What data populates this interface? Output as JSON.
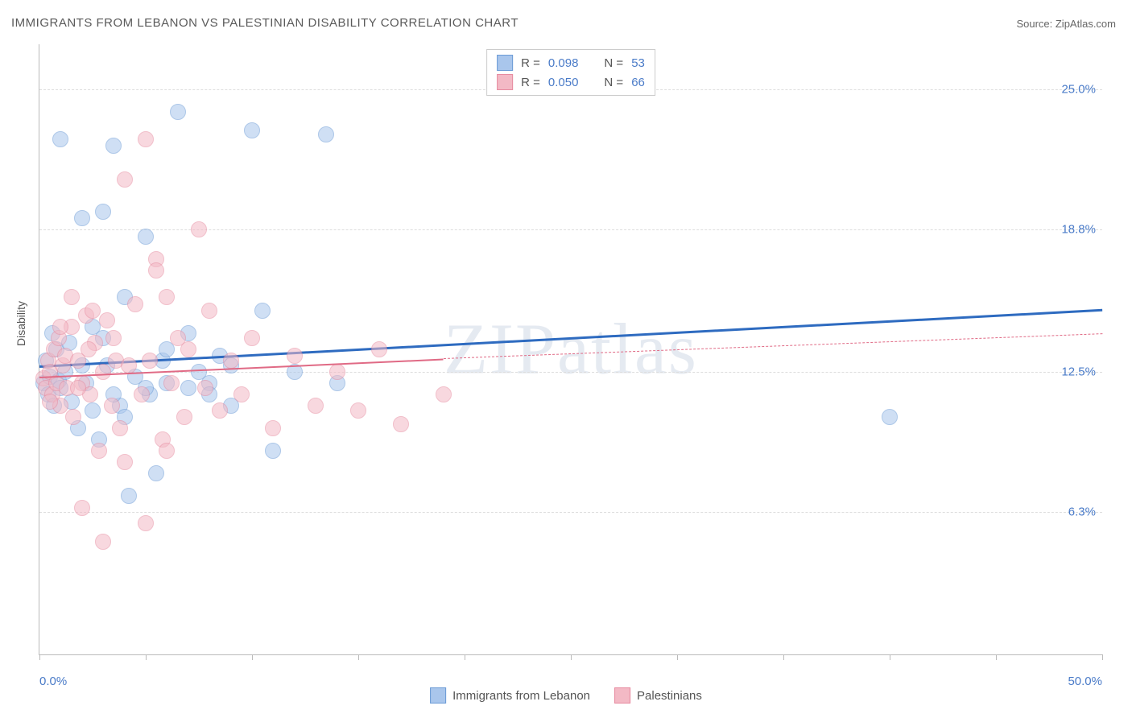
{
  "title": "IMMIGRANTS FROM LEBANON VS PALESTINIAN DISABILITY CORRELATION CHART",
  "source_label": "Source: ",
  "source_name": "ZipAtlas.com",
  "ylabel": "Disability",
  "watermark": "ZIPatlas",
  "chart": {
    "type": "scatter",
    "xlim": [
      0,
      50
    ],
    "ylim": [
      0,
      27
    ],
    "y_gridlines": [
      6.3,
      12.5,
      18.8,
      25.0
    ],
    "y_tick_labels": [
      "6.3%",
      "12.5%",
      "18.8%",
      "25.0%"
    ],
    "x_ticks": [
      0,
      5,
      10,
      15,
      20,
      25,
      30,
      35,
      40,
      45,
      50
    ],
    "x_tick_labels": {
      "start": "0.0%",
      "end": "50.0%"
    },
    "marker_radius": 9,
    "marker_opacity": 0.55,
    "background": "#ffffff",
    "grid_color": "#dddddd",
    "axis_color": "#bbbbbb"
  },
  "series": [
    {
      "name": "Immigrants from Lebanon",
      "fill": "#a9c6ec",
      "stroke": "#6b9bd6",
      "line_color": "#2e6bc0",
      "line_width": 3,
      "r_label": "R = ",
      "r_value": "0.098",
      "n_label": "N = ",
      "n_value": "53",
      "trend": {
        "x1": 0,
        "y1": 12.8,
        "x2": 50,
        "y2": 15.3,
        "dash": false
      },
      "points": [
        [
          0.2,
          12.0
        ],
        [
          0.3,
          13.0
        ],
        [
          0.4,
          11.5
        ],
        [
          0.5,
          12.3
        ],
        [
          0.6,
          14.2
        ],
        [
          0.7,
          11.0
        ],
        [
          0.8,
          13.5
        ],
        [
          0.9,
          12.1
        ],
        [
          1.0,
          11.8
        ],
        [
          1.2,
          12.5
        ],
        [
          1.4,
          13.8
        ],
        [
          1.5,
          11.2
        ],
        [
          1.8,
          10.0
        ],
        [
          2.0,
          19.3
        ],
        [
          2.2,
          12.0
        ],
        [
          2.5,
          14.5
        ],
        [
          2.8,
          9.5
        ],
        [
          3.0,
          19.6
        ],
        [
          3.2,
          12.8
        ],
        [
          3.5,
          22.5
        ],
        [
          3.8,
          11.0
        ],
        [
          4.0,
          15.8
        ],
        [
          4.2,
          7.0
        ],
        [
          4.5,
          12.3
        ],
        [
          5.0,
          18.5
        ],
        [
          5.2,
          11.5
        ],
        [
          5.5,
          8.0
        ],
        [
          5.8,
          13.0
        ],
        [
          6.0,
          12.0
        ],
        [
          6.5,
          24.0
        ],
        [
          7.0,
          11.8
        ],
        [
          7.5,
          12.5
        ],
        [
          8.0,
          12.0
        ],
        [
          8.5,
          13.2
        ],
        [
          9.0,
          11.0
        ],
        [
          10.0,
          23.2
        ],
        [
          10.5,
          15.2
        ],
        [
          11.0,
          9.0
        ],
        [
          12.0,
          12.5
        ],
        [
          13.5,
          23.0
        ],
        [
          14.0,
          12.0
        ],
        [
          40.0,
          10.5
        ],
        [
          1.0,
          22.8
        ],
        [
          2.0,
          12.8
        ],
        [
          3.0,
          14.0
        ],
        [
          4.0,
          10.5
        ],
        [
          5.0,
          11.8
        ],
        [
          6.0,
          13.5
        ],
        [
          7.0,
          14.2
        ],
        [
          8.0,
          11.5
        ],
        [
          9.0,
          12.8
        ],
        [
          2.5,
          10.8
        ],
        [
          3.5,
          11.5
        ]
      ]
    },
    {
      "name": "Palestinians",
      "fill": "#f3b9c5",
      "stroke": "#e78ba0",
      "line_color": "#e06a85",
      "line_width": 2,
      "r_label": "R = ",
      "r_value": "0.050",
      "n_label": "N = ",
      "n_value": "66",
      "trend_solid": {
        "x1": 0,
        "y1": 12.3,
        "x2": 19,
        "y2": 13.1,
        "dash": false
      },
      "trend_dash": {
        "x1": 19,
        "y1": 13.1,
        "x2": 50,
        "y2": 14.2,
        "dash": true
      },
      "points": [
        [
          0.2,
          12.2
        ],
        [
          0.3,
          11.8
        ],
        [
          0.4,
          13.0
        ],
        [
          0.5,
          12.5
        ],
        [
          0.6,
          11.5
        ],
        [
          0.7,
          13.5
        ],
        [
          0.8,
          12.0
        ],
        [
          0.9,
          14.0
        ],
        [
          1.0,
          11.0
        ],
        [
          1.1,
          12.8
        ],
        [
          1.2,
          13.2
        ],
        [
          1.3,
          11.8
        ],
        [
          1.5,
          14.5
        ],
        [
          1.6,
          10.5
        ],
        [
          1.8,
          13.0
        ],
        [
          2.0,
          12.0
        ],
        [
          2.2,
          15.0
        ],
        [
          2.4,
          11.5
        ],
        [
          2.6,
          13.8
        ],
        [
          2.8,
          9.0
        ],
        [
          3.0,
          12.5
        ],
        [
          3.2,
          14.8
        ],
        [
          3.4,
          11.0
        ],
        [
          3.6,
          13.0
        ],
        [
          3.8,
          10.0
        ],
        [
          4.0,
          21.0
        ],
        [
          4.2,
          12.8
        ],
        [
          4.5,
          15.5
        ],
        [
          4.8,
          11.5
        ],
        [
          5.0,
          22.8
        ],
        [
          5.2,
          13.0
        ],
        [
          5.5,
          17.5
        ],
        [
          5.5,
          17.0
        ],
        [
          5.8,
          9.5
        ],
        [
          6.0,
          15.8
        ],
        [
          6.2,
          12.0
        ],
        [
          6.5,
          14.0
        ],
        [
          6.8,
          10.5
        ],
        [
          7.0,
          13.5
        ],
        [
          7.5,
          18.8
        ],
        [
          7.8,
          11.8
        ],
        [
          8.0,
          15.2
        ],
        [
          8.5,
          10.8
        ],
        [
          9.0,
          13.0
        ],
        [
          9.5,
          11.5
        ],
        [
          10.0,
          14.0
        ],
        [
          11.0,
          10.0
        ],
        [
          12.0,
          13.2
        ],
        [
          13.0,
          11.0
        ],
        [
          14.0,
          12.5
        ],
        [
          15.0,
          10.8
        ],
        [
          16.0,
          13.5
        ],
        [
          17.0,
          10.2
        ],
        [
          19.0,
          11.5
        ],
        [
          3.0,
          5.0
        ],
        [
          5.0,
          5.8
        ],
        [
          2.0,
          6.5
        ],
        [
          4.0,
          8.5
        ],
        [
          6.0,
          9.0
        ],
        [
          1.5,
          15.8
        ],
        [
          2.5,
          15.2
        ],
        [
          3.5,
          14.0
        ],
        [
          1.0,
          14.5
        ],
        [
          0.5,
          11.2
        ],
        [
          1.8,
          11.8
        ],
        [
          2.3,
          13.5
        ]
      ]
    }
  ]
}
